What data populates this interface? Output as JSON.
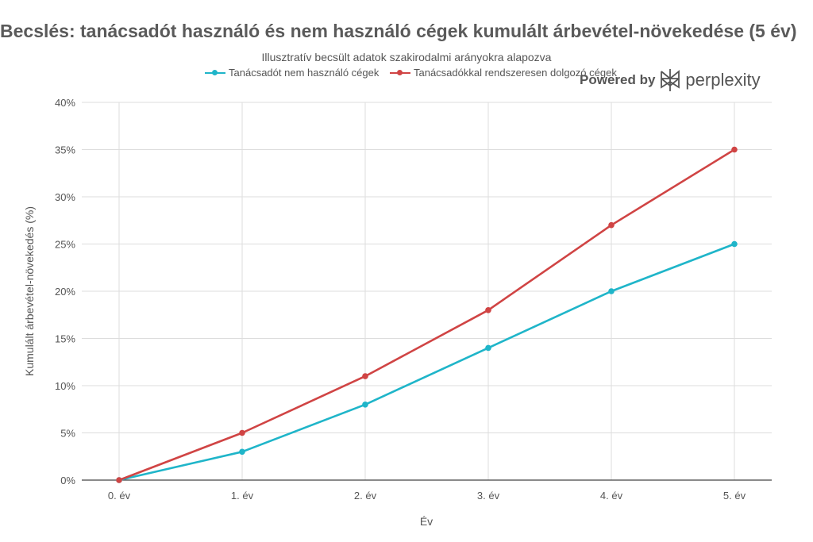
{
  "chart_data": {
    "type": "line",
    "title": "Becslés: tanácsadót használó és nem használó cégek kumulált árbevétel-növekedése (5 év)",
    "subtitle": "Illusztratív becsült adatok szakirodalmi arányokra alapozva",
    "xlabel": "Év",
    "ylabel": "Kumulált árbevétel-növekedés (%)",
    "categories": [
      "0. év",
      "1. év",
      "2. év",
      "3. év",
      "4. év",
      "5. év"
    ],
    "ylim": [
      0,
      40
    ],
    "yticks": [
      "0%",
      "5%",
      "10%",
      "15%",
      "20%",
      "25%",
      "30%",
      "35%",
      "40%"
    ],
    "ytick_values": [
      0,
      5,
      10,
      15,
      20,
      25,
      30,
      35,
      40
    ],
    "grid": true,
    "legend_position": "top-center",
    "series": [
      {
        "name": "Tanácsadót nem használó cégek",
        "color": "#1fb5c9",
        "values": [
          0,
          3,
          8,
          14,
          20,
          25
        ]
      },
      {
        "name": "Tanácsadókkal rendszeresen dolgozó cégek",
        "color": "#d04444",
        "values": [
          0,
          5,
          11,
          18,
          27,
          35
        ]
      }
    ]
  },
  "branding": {
    "powered_by": "Powered by",
    "name": "perplexity"
  }
}
